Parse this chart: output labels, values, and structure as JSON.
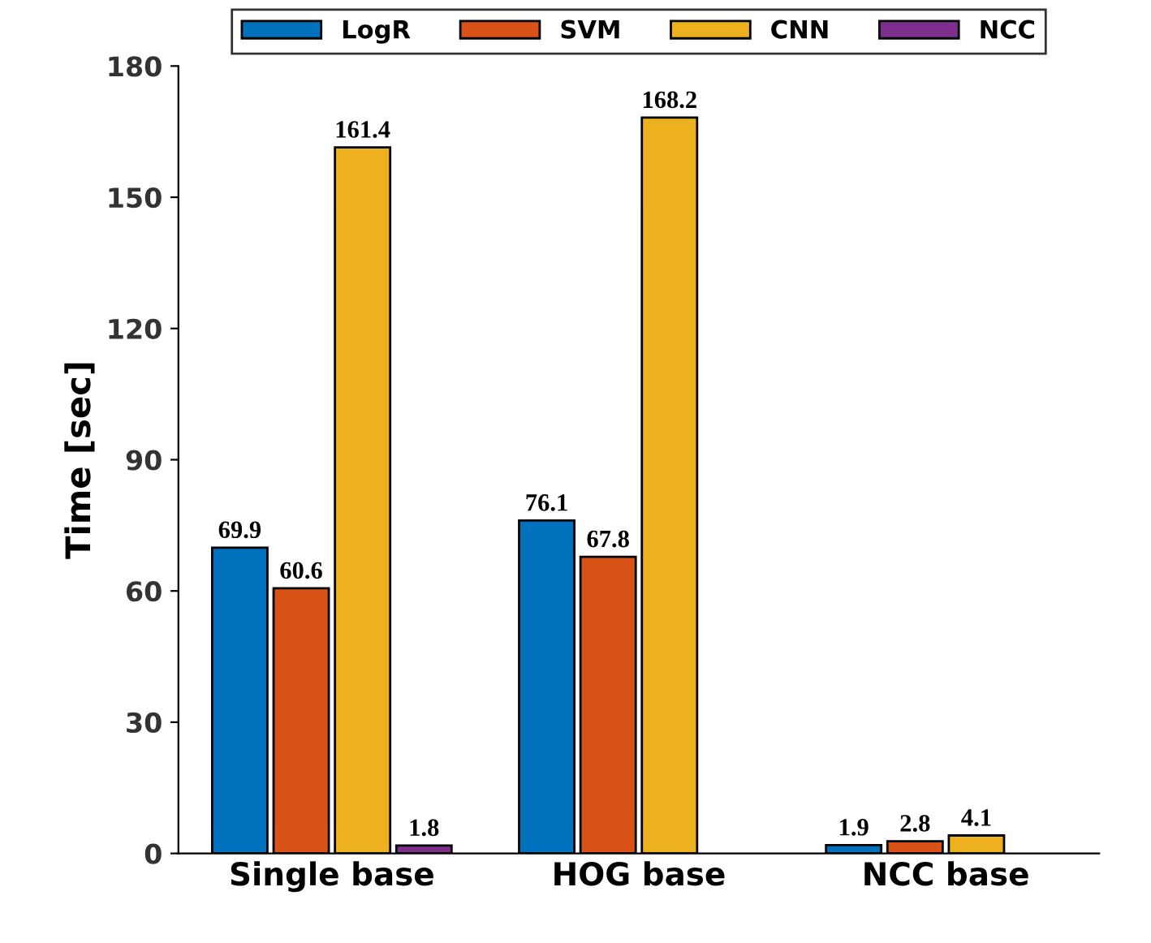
{
  "chart_data": {
    "type": "bar",
    "ylabel": "Time [sec]",
    "categories": [
      "Single base",
      "HOG base",
      "NCC base"
    ],
    "series": [
      {
        "name": "LogR",
        "color": "#0072bd",
        "values": [
          69.9,
          76.1,
          1.9
        ]
      },
      {
        "name": "SVM",
        "color": "#d95319",
        "values": [
          60.6,
          67.8,
          2.8
        ]
      },
      {
        "name": "CNN",
        "color": "#edb120",
        "values": [
          161.4,
          168.2,
          4.1
        ]
      },
      {
        "name": "NCC",
        "color": "#7e2f8e",
        "values": [
          1.8,
          null,
          null
        ]
      }
    ],
    "ylim": [
      0,
      180
    ],
    "yticks": [
      0,
      30,
      60,
      90,
      120,
      150,
      180
    ],
    "data_labels": true,
    "legend": "top",
    "grid": false
  }
}
